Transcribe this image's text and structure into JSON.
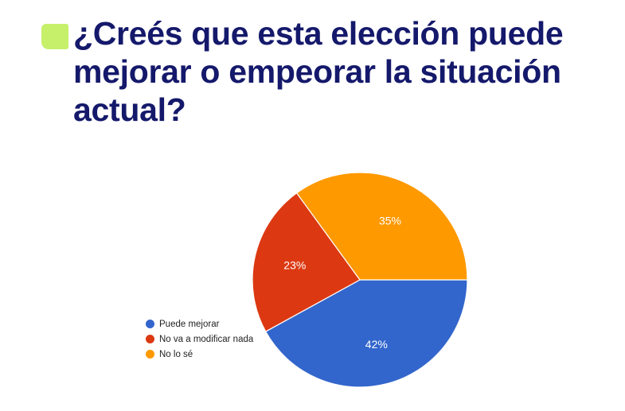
{
  "title": "¿Creés que esta elección puede mejorar o empeorar la situación actual?",
  "chart_data": {
    "type": "pie",
    "title": "¿Creés que esta elección puede mejorar o empeorar la situación actual?",
    "legend_position": "left",
    "slices": [
      {
        "label": "Puede mejorar",
        "value": 42,
        "display": "42%",
        "color": "#3366cc"
      },
      {
        "label": "No va a modificar nada",
        "value": 23,
        "display": "23%",
        "color": "#dc3912"
      },
      {
        "label": "No lo sé",
        "value": 35,
        "display": "35%",
        "color": "#ff9900"
      }
    ]
  }
}
